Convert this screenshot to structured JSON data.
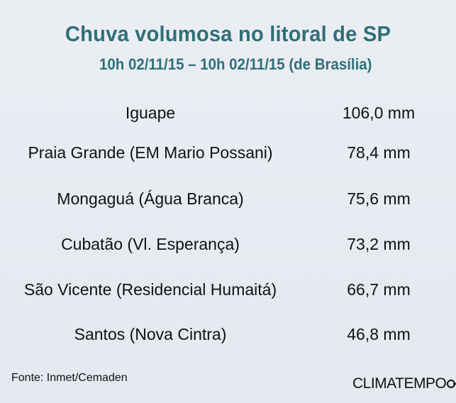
{
  "title": "Chuva volumosa no litoral de SP",
  "subtitle": "10h 02/11/15 – 10h 02/11/15 (de Brasília)",
  "rows": [
    {
      "location": "Iguape",
      "value": "106,0 mm"
    },
    {
      "location": "Praia Grande (EM Mario Possani)",
      "value": "78,4 mm"
    },
    {
      "location": "Mongaguá (Água Branca)",
      "value": "75,6 mm"
    },
    {
      "location": "Cubatão (Vl. Esperança)",
      "value": "73,2 mm"
    },
    {
      "location": "São Vicente (Residencial Humaitá)",
      "value": "66,7 mm"
    },
    {
      "location": "Santos (Nova Cintra)",
      "value": "46,8 mm"
    }
  ],
  "source": "Fonte: Inmet/Cemaden",
  "brand": "CLIMATEMPO",
  "colors": {
    "title": "#2f6f79",
    "background": "#e6ebf0",
    "text": "#111111"
  }
}
